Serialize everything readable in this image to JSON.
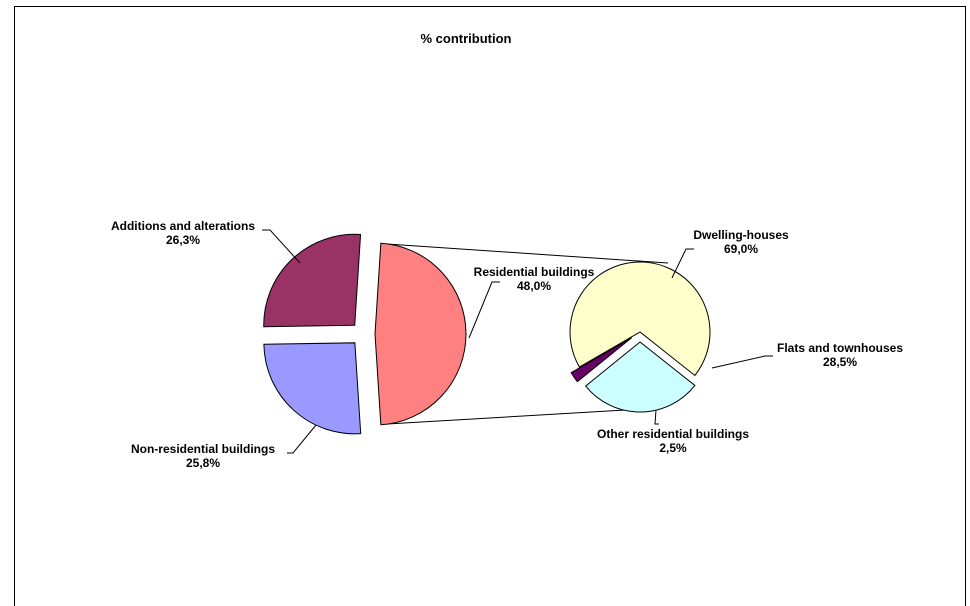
{
  "chart_data": {
    "type": "pie",
    "title": "% contribution",
    "main_pie": {
      "slices": [
        {
          "label": "Residential buildings",
          "value_label": "48,0%",
          "value": 48.0,
          "color": "#FF8080"
        },
        {
          "label": "Non-residential buildings",
          "value_label": "25,8%",
          "value": 25.8,
          "color": "#9999FF"
        },
        {
          "label": "Additions and alterations",
          "value_label": "26,3%",
          "value": 26.3,
          "color": "#993366"
        }
      ]
    },
    "sub_pie": {
      "slices": [
        {
          "label": "Dwelling-houses",
          "value_label": "69,0%",
          "value": 69.0,
          "color": "#FFFFCC"
        },
        {
          "label": "Flats and townhouses",
          "value_label": "28,5%",
          "value": 28.5,
          "color": "#CCFFFF"
        },
        {
          "label": "Other residential buildings",
          "value_label": "2,5%",
          "value": 2.5,
          "color": "#660066"
        }
      ]
    }
  }
}
